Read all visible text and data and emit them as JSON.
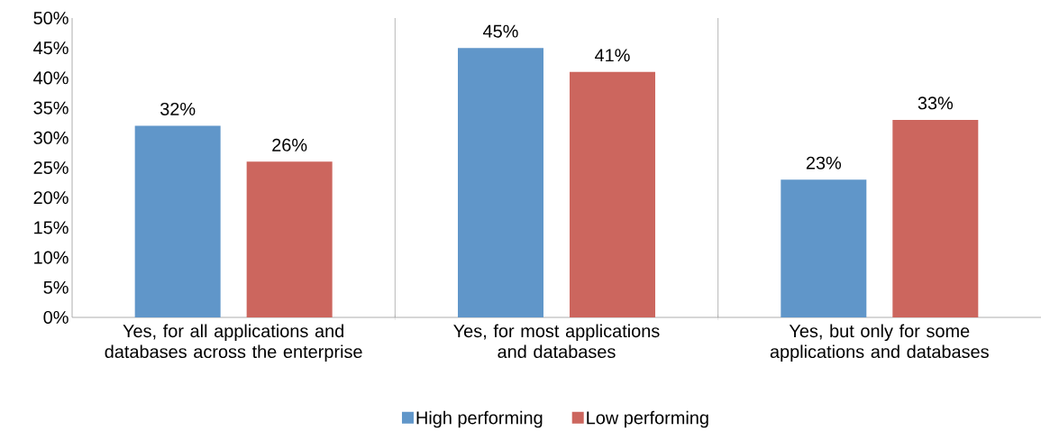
{
  "chart_data": {
    "type": "bar",
    "categories": [
      "Yes, for all applications and databases across the enterprise",
      "Yes, for most applications and databases",
      "Yes, but only for some applications and databases"
    ],
    "series": [
      {
        "name": "High performing",
        "color": "#6096c9",
        "values": [
          32,
          45,
          23
        ],
        "value_labels": [
          "32%",
          "45%",
          "23%"
        ]
      },
      {
        "name": "Low performing",
        "color": "#cc665e",
        "values": [
          26,
          41,
          33
        ],
        "value_labels": [
          "26%",
          "41%",
          "33%"
        ]
      }
    ],
    "ylim": [
      0,
      50
    ],
    "yticks": [
      {
        "value": 0,
        "label": "0%"
      },
      {
        "value": 5,
        "label": "5%"
      },
      {
        "value": 10,
        "label": "10%"
      },
      {
        "value": 15,
        "label": "15%"
      },
      {
        "value": 20,
        "label": "20%"
      },
      {
        "value": 25,
        "label": "25%"
      },
      {
        "value": 30,
        "label": "30%"
      },
      {
        "value": 35,
        "label": "35%"
      },
      {
        "value": 40,
        "label": "40%"
      },
      {
        "value": 45,
        "label": "45%"
      },
      {
        "value": 50,
        "label": "50%"
      }
    ],
    "grid": "x",
    "legend": "bottom"
  }
}
